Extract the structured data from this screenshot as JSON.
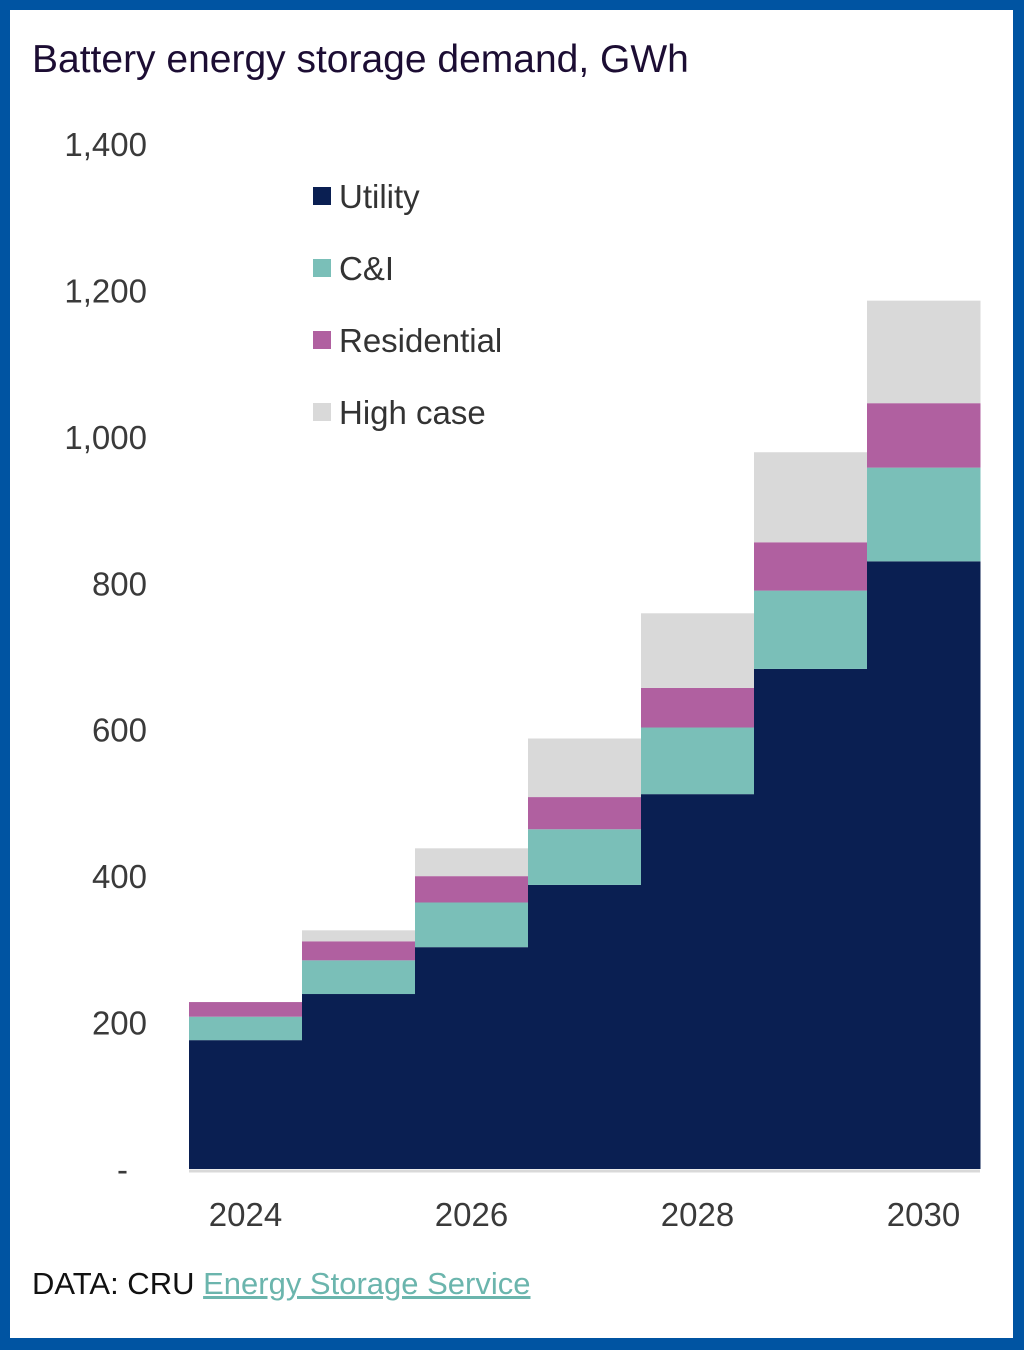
{
  "chart_data": {
    "type": "bar",
    "stacked": true,
    "title": "Battery energy storage demand, GWh",
    "xlabel": "",
    "ylabel": "",
    "categories": [
      "2024",
      "2025",
      "2026",
      "2027",
      "2028",
      "2029",
      "2030"
    ],
    "x_tick_labels": [
      "2024",
      "2026",
      "2028",
      "2030"
    ],
    "y_ticks": [
      0,
      200,
      400,
      600,
      800,
      1000,
      1200,
      1400
    ],
    "y_tick_labels": [
      "-",
      "200",
      "400",
      "600",
      "800",
      "1,000",
      "1,200",
      "1,400"
    ],
    "ylim": [
      0,
      1400
    ],
    "grid": false,
    "legend_position": "top-left",
    "series": [
      {
        "name": "Utility",
        "color": "#0a1f52",
        "values": [
          176,
          239,
          303,
          388,
          512,
          683,
          830
        ]
      },
      {
        "name": "C&I",
        "color": "#7abfb8",
        "values": [
          32,
          46,
          61,
          76,
          91,
          107,
          128
        ]
      },
      {
        "name": "Residential",
        "color": "#b060a0",
        "values": [
          20,
          26,
          36,
          44,
          54,
          66,
          88
        ]
      },
      {
        "name": "High case",
        "color": "#d9d9d9",
        "values": [
          0,
          15,
          38,
          80,
          102,
          123,
          140
        ]
      }
    ]
  },
  "title": "Battery energy storage demand, GWh",
  "source": {
    "prefix": "DATA: CRU",
    "link_text": "Energy Storage Service"
  },
  "colors": {
    "frame": "#0054a2",
    "link": "#6bb5ad",
    "axis_line": "#d9d9d9"
  }
}
